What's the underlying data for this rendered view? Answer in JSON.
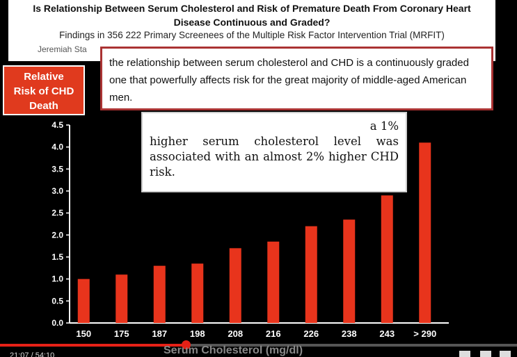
{
  "header": {
    "title_line1": "Is Relationship Between Serum Cholesterol and Risk of Premature Death From Coronary Heart",
    "title_line2": "Disease Continuous and Graded?",
    "subtitle": "Findings in 356 222 Primary Screenees of the Multiple Risk Factor Intervention Trial (MRFIT)",
    "author_partial": "Jeremiah Sta"
  },
  "quote1": {
    "text": "the relationship between serum cholesterol and CHD is a continuously graded one that powerfully affects risk for the great majority of middle-aged American men."
  },
  "quote2": {
    "line1": "a 1%",
    "rest": "higher serum cholesterol level was associated with an almost 2% higher CHD risk."
  },
  "ylabel_lines": [
    "Relative",
    "Risk of CHD",
    "Death"
  ],
  "chart_data": {
    "type": "bar",
    "categories": [
      "150",
      "175",
      "187",
      "198",
      "208",
      "216",
      "226",
      "238",
      "243",
      "> 290"
    ],
    "values": [
      1.0,
      1.1,
      1.3,
      1.35,
      1.7,
      1.85,
      2.2,
      2.35,
      2.9,
      4.1
    ],
    "ylim": [
      0,
      4.5
    ],
    "yticks": [
      "0.0",
      "0.5",
      "1.0",
      "1.5",
      "2.0",
      "2.5",
      "3.0",
      "3.5",
      "4.0",
      "4.5"
    ],
    "xlabel": "Serum Cholesterol (mg/dl)",
    "ylabel": "Relative Risk of CHD Death",
    "bar_color": "#e8341c",
    "grid": false
  },
  "player": {
    "progress_fraction": 0.36,
    "timecode": "21:07 / 54:10"
  }
}
